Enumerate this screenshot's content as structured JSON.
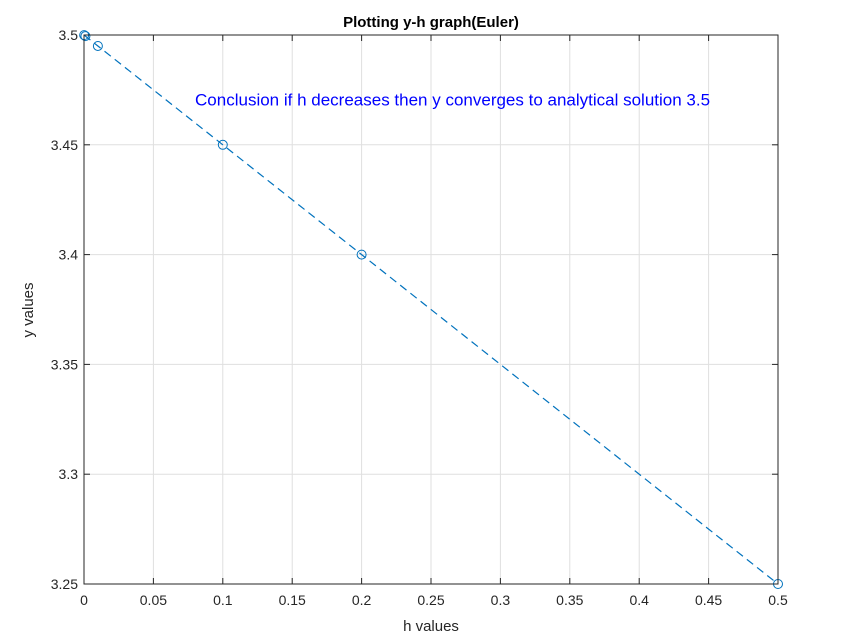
{
  "chart_data": {
    "type": "line",
    "title": "Plotting y-h graph(Euler)",
    "xlabel": "h values",
    "ylabel": "y values",
    "xlim": [
      0,
      0.5
    ],
    "ylim": [
      3.25,
      3.5
    ],
    "xticks": [
      0,
      0.05,
      0.1,
      0.15,
      0.2,
      0.25,
      0.3,
      0.35,
      0.4,
      0.45,
      0.5
    ],
    "xtick_labels": [
      "0",
      "0.05",
      "0.1",
      "0.15",
      "0.2",
      "0.25",
      "0.3",
      "0.35",
      "0.4",
      "0.45",
      "0.5"
    ],
    "yticks": [
      3.25,
      3.3,
      3.35,
      3.4,
      3.45,
      3.5
    ],
    "ytick_labels": [
      "3.25",
      "3.3",
      "3.35",
      "3.4",
      "3.45",
      "3.5"
    ],
    "grid": true,
    "series": [
      {
        "x": [
          0.0001,
          0.001,
          0.01,
          0.1,
          0.2,
          0.5
        ],
        "y": [
          3.49995,
          3.4995,
          3.495,
          3.45,
          3.4,
          3.25
        ],
        "line_style": "dashed",
        "marker": "circle",
        "color": "#0072BD"
      }
    ],
    "annotation": {
      "text": "Conclusion if h decreases then y converges to analytical solution 3.5",
      "x": 0.08,
      "y": 3.468,
      "color": "#0000FF"
    }
  }
}
